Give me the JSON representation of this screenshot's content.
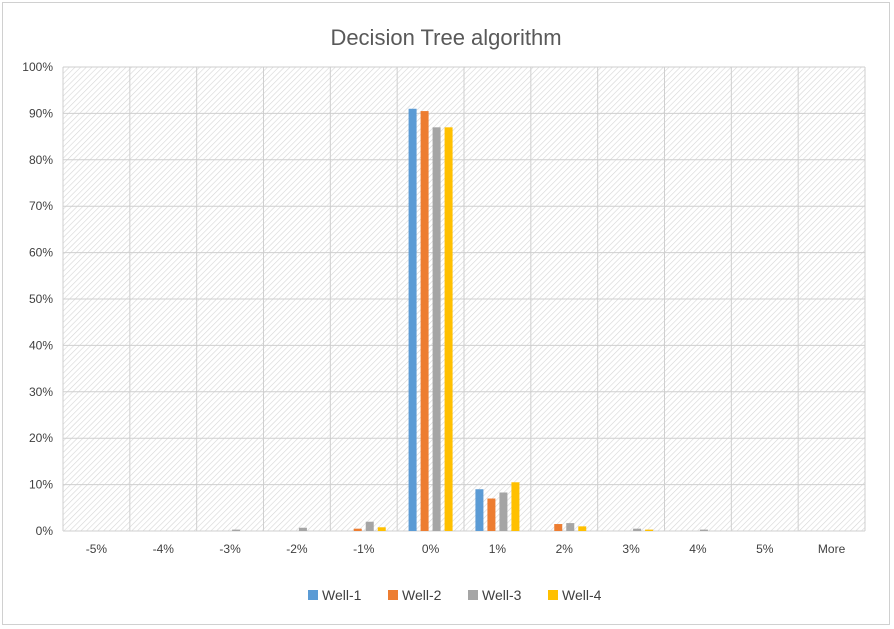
{
  "chart_data": {
    "type": "bar",
    "title": "Decision Tree algorithm",
    "xlabel": "",
    "ylabel": "",
    "categories": [
      "-5%",
      "-4%",
      "-3%",
      "-2%",
      "-1%",
      "0%",
      "1%",
      "2%",
      "3%",
      "4%",
      "5%",
      "More"
    ],
    "y_ticks": [
      "0%",
      "10%",
      "20%",
      "30%",
      "40%",
      "50%",
      "60%",
      "70%",
      "80%",
      "90%",
      "100%"
    ],
    "ylim": [
      0,
      100
    ],
    "y_unit": "percent",
    "grid": true,
    "plot_area_fill": "diagonal hatch",
    "legend_position": "bottom",
    "series": [
      {
        "name": "Well-1",
        "color": "#5b9bd5",
        "values": [
          0,
          0,
          0,
          0,
          0,
          91,
          9,
          0,
          0,
          0,
          0,
          0
        ]
      },
      {
        "name": "Well-2",
        "color": "#ed7d31",
        "values": [
          0,
          0,
          0,
          0,
          0.5,
          90.5,
          7,
          1.5,
          0,
          0,
          0,
          0
        ]
      },
      {
        "name": "Well-3",
        "color": "#a5a5a5",
        "values": [
          0,
          0,
          0.3,
          0.7,
          2,
          87,
          8.3,
          1.7,
          0.5,
          0.3,
          0,
          0
        ]
      },
      {
        "name": "Well-4",
        "color": "#ffc000",
        "values": [
          0,
          0,
          0,
          0,
          0.8,
          87,
          10.5,
          1,
          0.3,
          0,
          0,
          0
        ]
      }
    ]
  }
}
